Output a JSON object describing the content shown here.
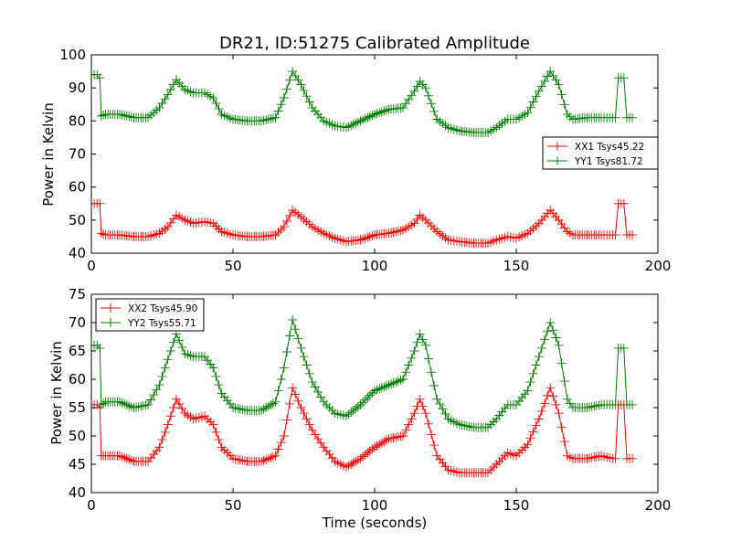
{
  "chart_data": [
    {
      "type": "line",
      "title": "DR21, ID:51275 Calibrated Amplitude",
      "xlabel": "",
      "ylabel": "Power in Kelvin",
      "xlim": [
        0,
        200
      ],
      "ylim": [
        40,
        100
      ],
      "xticks": [
        0,
        50,
        100,
        150,
        200
      ],
      "yticks": [
        40,
        50,
        60,
        70,
        80,
        90,
        100
      ],
      "legend_position": "center-right",
      "grid": false,
      "series": [
        {
          "name": "XX1 Tsys45.22",
          "color": "#ff0000",
          "marker": "plus",
          "points": [
            [
              0,
              55
            ],
            [
              2,
              55
            ],
            [
              3,
              55
            ],
            [
              3.5,
              46
            ],
            [
              5,
              45.5
            ],
            [
              10,
              45.5
            ],
            [
              15,
              45
            ],
            [
              20,
              45
            ],
            [
              24,
              46
            ],
            [
              27,
              48
            ],
            [
              30,
              51.5
            ],
            [
              33,
              50
            ],
            [
              36,
              49
            ],
            [
              40,
              49.5
            ],
            [
              43,
              49
            ],
            [
              46,
              46.5
            ],
            [
              50,
              45.5
            ],
            [
              55,
              45
            ],
            [
              60,
              45
            ],
            [
              65,
              45.5
            ],
            [
              68,
              48
            ],
            [
              71,
              53
            ],
            [
              74,
              51
            ],
            [
              78,
              48
            ],
            [
              82,
              46
            ],
            [
              86,
              44.5
            ],
            [
              90,
              43.5
            ],
            [
              95,
              44
            ],
            [
              100,
              45.5
            ],
            [
              105,
              46
            ],
            [
              110,
              47
            ],
            [
              114,
              49
            ],
            [
              116,
              51.5
            ],
            [
              118,
              50
            ],
            [
              122,
              46.5
            ],
            [
              126,
              44
            ],
            [
              130,
              43.5
            ],
            [
              135,
              43
            ],
            [
              140,
              43
            ],
            [
              143,
              44
            ],
            [
              147,
              45
            ],
            [
              150,
              44.5
            ],
            [
              154,
              46
            ],
            [
              158,
              49
            ],
            [
              162,
              53
            ],
            [
              165,
              50
            ],
            [
              168,
              46.5
            ],
            [
              170,
              45.5
            ],
            [
              175,
              45.5
            ],
            [
              180,
              45.5
            ],
            [
              184,
              45.5
            ],
            [
              185,
              45.5
            ],
            [
              186,
              55
            ],
            [
              188,
              55
            ],
            [
              189,
              45.5
            ],
            [
              191,
              45.5
            ]
          ]
        },
        {
          "name": "YY1 Tsys81.72",
          "color": "#008000",
          "marker": "plus",
          "points": [
            [
              0,
              94
            ],
            [
              2,
              94
            ],
            [
              3,
              93
            ],
            [
              3.5,
              81.5
            ],
            [
              5,
              82
            ],
            [
              10,
              82
            ],
            [
              15,
              81
            ],
            [
              20,
              81
            ],
            [
              24,
              84
            ],
            [
              27,
              88
            ],
            [
              30,
              92.5
            ],
            [
              33,
              89.5
            ],
            [
              36,
              88.5
            ],
            [
              40,
              88.5
            ],
            [
              43,
              87
            ],
            [
              46,
              82
            ],
            [
              50,
              80.5
            ],
            [
              55,
              80
            ],
            [
              60,
              80
            ],
            [
              65,
              81
            ],
            [
              68,
              87
            ],
            [
              71,
              95
            ],
            [
              74,
              91
            ],
            [
              78,
              84
            ],
            [
              82,
              80
            ],
            [
              86,
              78.5
            ],
            [
              90,
              78
            ],
            [
              95,
              80
            ],
            [
              100,
              82
            ],
            [
              105,
              83.5
            ],
            [
              110,
              84
            ],
            [
              114,
              89
            ],
            [
              116,
              92
            ],
            [
              118,
              90
            ],
            [
              122,
              80.5
            ],
            [
              126,
              78
            ],
            [
              130,
              77
            ],
            [
              135,
              76.5
            ],
            [
              140,
              76.5
            ],
            [
              143,
              78
            ],
            [
              147,
              80.5
            ],
            [
              150,
              80.5
            ],
            [
              154,
              82.5
            ],
            [
              158,
              89
            ],
            [
              162,
              95
            ],
            [
              165,
              91
            ],
            [
              168,
              82
            ],
            [
              170,
              80.5
            ],
            [
              175,
              81
            ],
            [
              180,
              81
            ],
            [
              184,
              81
            ],
            [
              185,
              81
            ],
            [
              186,
              93
            ],
            [
              188,
              93
            ],
            [
              189,
              81
            ],
            [
              191,
              81
            ]
          ]
        }
      ]
    },
    {
      "type": "line",
      "title": "",
      "xlabel": "Time (seconds)",
      "ylabel": "Power in Kelvin",
      "xlim": [
        0,
        200
      ],
      "ylim": [
        40,
        75
      ],
      "xticks": [
        0,
        50,
        100,
        150,
        200
      ],
      "yticks": [
        40,
        45,
        50,
        55,
        60,
        65,
        70,
        75
      ],
      "legend_position": "upper-left",
      "grid": false,
      "series": [
        {
          "name": "XX2 Tsys45.90",
          "color": "#ff0000",
          "marker": "plus",
          "points": [
            [
              0,
              55.5
            ],
            [
              2,
              55.5
            ],
            [
              3,
              55
            ],
            [
              3.5,
              46.5
            ],
            [
              5,
              46.5
            ],
            [
              10,
              46.5
            ],
            [
              15,
              45.5
            ],
            [
              20,
              45.5
            ],
            [
              24,
              48
            ],
            [
              27,
              52
            ],
            [
              30,
              56.5
            ],
            [
              33,
              54
            ],
            [
              36,
              53
            ],
            [
              40,
              53.5
            ],
            [
              43,
              52
            ],
            [
              46,
              48
            ],
            [
              50,
              46
            ],
            [
              55,
              45.5
            ],
            [
              60,
              45.5
            ],
            [
              65,
              46.5
            ],
            [
              68,
              50
            ],
            [
              71,
              58.5
            ],
            [
              74,
              55
            ],
            [
              78,
              51
            ],
            [
              82,
              48
            ],
            [
              86,
              45.5
            ],
            [
              90,
              44.5
            ],
            [
              95,
              46
            ],
            [
              100,
              48
            ],
            [
              105,
              49.5
            ],
            [
              110,
              50
            ],
            [
              114,
              54
            ],
            [
              116,
              56.5
            ],
            [
              118,
              54
            ],
            [
              122,
              46.5
            ],
            [
              126,
              44
            ],
            [
              130,
              43.5
            ],
            [
              135,
              43.5
            ],
            [
              140,
              43.5
            ],
            [
              143,
              45
            ],
            [
              147,
              47
            ],
            [
              150,
              46.5
            ],
            [
              154,
              48.5
            ],
            [
              158,
              53
            ],
            [
              162,
              58.5
            ],
            [
              165,
              54
            ],
            [
              168,
              46.5
            ],
            [
              170,
              46
            ],
            [
              175,
              46
            ],
            [
              180,
              46.5
            ],
            [
              184,
              46
            ],
            [
              185,
              46
            ],
            [
              186,
              55.5
            ],
            [
              188,
              55.5
            ],
            [
              189,
              46
            ],
            [
              191,
              46
            ]
          ]
        },
        {
          "name": "YY2 Tsys55.71",
          "color": "#008000",
          "marker": "plus",
          "points": [
            [
              0,
              66
            ],
            [
              2,
              66
            ],
            [
              3,
              65.5
            ],
            [
              3.5,
              55.5
            ],
            [
              5,
              56
            ],
            [
              10,
              56
            ],
            [
              15,
              55
            ],
            [
              20,
              55.5
            ],
            [
              24,
              59
            ],
            [
              27,
              63.5
            ],
            [
              30,
              68
            ],
            [
              33,
              64.5
            ],
            [
              36,
              64
            ],
            [
              40,
              64
            ],
            [
              43,
              62
            ],
            [
              46,
              57.5
            ],
            [
              50,
              55
            ],
            [
              55,
              54.5
            ],
            [
              60,
              54.5
            ],
            [
              65,
              56
            ],
            [
              68,
              62
            ],
            [
              71,
              70.5
            ],
            [
              74,
              65.5
            ],
            [
              78,
              59.5
            ],
            [
              82,
              56
            ],
            [
              86,
              54
            ],
            [
              90,
              53.5
            ],
            [
              95,
              55.5
            ],
            [
              100,
              58
            ],
            [
              105,
              59
            ],
            [
              110,
              60
            ],
            [
              114,
              65
            ],
            [
              116,
              68
            ],
            [
              118,
              66
            ],
            [
              122,
              56.5
            ],
            [
              126,
              53
            ],
            [
              130,
              52
            ],
            [
              135,
              51.5
            ],
            [
              140,
              51.5
            ],
            [
              143,
              53
            ],
            [
              147,
              55.5
            ],
            [
              150,
              55.5
            ],
            [
              154,
              58
            ],
            [
              158,
              64
            ],
            [
              162,
              70
            ],
            [
              165,
              66
            ],
            [
              168,
              56.5
            ],
            [
              170,
              55
            ],
            [
              175,
              55
            ],
            [
              180,
              55.5
            ],
            [
              184,
              55.5
            ],
            [
              185,
              55.5
            ],
            [
              186,
              65.5
            ],
            [
              188,
              65.5
            ],
            [
              189,
              55.5
            ],
            [
              191,
              55.5
            ]
          ]
        }
      ]
    }
  ]
}
